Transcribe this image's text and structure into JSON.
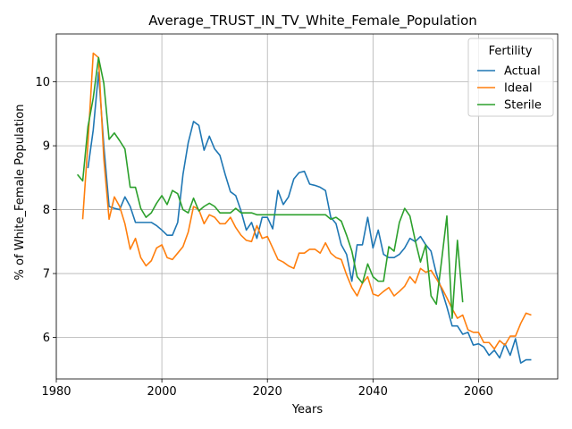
{
  "chart_data": {
    "type": "line",
    "title": "Average_TRUST_IN_TV_White_Female_Population",
    "xlabel": "Years",
    "ylabel": "% of White_Female Population",
    "xlim": [
      1980,
      2075
    ],
    "ylim": [
      5.35,
      10.75
    ],
    "xticks": [
      1980,
      2000,
      2020,
      2040,
      2060
    ],
    "yticks": [
      6,
      7,
      8,
      9,
      10
    ],
    "grid": true,
    "legend": {
      "title": "Fertility",
      "position": "top-right"
    },
    "series": [
      {
        "name": "Actual",
        "color": "#1f77b4",
        "x": [
          1986,
          1987,
          1988,
          1989,
          1990,
          1991,
          1992,
          1993,
          1994,
          1995,
          1996,
          1997,
          1998,
          1999,
          2000,
          2001,
          2002,
          2003,
          2004,
          2005,
          2006,
          2007,
          2008,
          2009,
          2010,
          2011,
          2012,
          2013,
          2014,
          2015,
          2016,
          2017,
          2018,
          2019,
          2020,
          2021,
          2022,
          2023,
          2024,
          2025,
          2026,
          2027,
          2028,
          2029,
          2030,
          2031,
          2032,
          2033,
          2034,
          2035,
          2036,
          2037,
          2038,
          2039,
          2040,
          2041,
          2042,
          2043,
          2044,
          2045,
          2046,
          2047,
          2048,
          2049,
          2050,
          2051,
          2052,
          2053,
          2054,
          2055,
          2056,
          2057,
          2058,
          2059,
          2060,
          2061,
          2062,
          2063,
          2064,
          2065,
          2066,
          2067,
          2068,
          2069,
          2070
        ],
        "y": [
          8.65,
          9.25,
          10.15,
          9.0,
          8.05,
          8.02,
          8.0,
          8.2,
          8.05,
          7.8,
          7.8,
          7.8,
          7.8,
          7.75,
          7.68,
          7.6,
          7.6,
          7.8,
          8.55,
          9.05,
          9.38,
          9.32,
          8.93,
          9.15,
          8.95,
          8.85,
          8.55,
          8.28,
          8.22,
          7.98,
          7.68,
          7.8,
          7.55,
          7.88,
          7.88,
          7.7,
          8.3,
          8.08,
          8.2,
          8.48,
          8.58,
          8.6,
          8.4,
          8.38,
          8.35,
          8.3,
          7.88,
          7.78,
          7.45,
          7.3,
          6.88,
          7.45,
          7.45,
          7.88,
          7.4,
          7.68,
          7.3,
          7.25,
          7.25,
          7.3,
          7.4,
          7.55,
          7.5,
          7.58,
          7.45,
          7.35,
          7.0,
          6.75,
          6.48,
          6.18,
          6.18,
          6.05,
          6.08,
          5.88,
          5.9,
          5.85,
          5.72,
          5.8,
          5.68,
          5.9,
          5.72,
          5.98,
          5.6,
          5.65,
          5.65
        ]
      },
      {
        "name": "Ideal",
        "color": "#ff7f0e",
        "x": [
          1985,
          1986,
          1987,
          1988,
          1989,
          1990,
          1991,
          1992,
          1993,
          1994,
          1995,
          1996,
          1997,
          1998,
          1999,
          2000,
          2001,
          2002,
          2003,
          2004,
          2005,
          2006,
          2007,
          2008,
          2009,
          2010,
          2011,
          2012,
          2013,
          2014,
          2015,
          2016,
          2017,
          2018,
          2019,
          2020,
          2021,
          2022,
          2023,
          2024,
          2025,
          2026,
          2027,
          2028,
          2029,
          2030,
          2031,
          2032,
          2033,
          2034,
          2035,
          2036,
          2037,
          2038,
          2039,
          2040,
          2041,
          2042,
          2043,
          2044,
          2045,
          2046,
          2047,
          2048,
          2049,
          2050,
          2051,
          2052,
          2053,
          2054,
          2055,
          2056,
          2057,
          2058,
          2059,
          2060,
          2061,
          2062,
          2063,
          2064,
          2065,
          2066,
          2067,
          2068,
          2069,
          2070
        ],
        "y": [
          7.85,
          9.05,
          10.45,
          10.38,
          8.8,
          7.85,
          8.2,
          8.05,
          7.78,
          7.38,
          7.55,
          7.25,
          7.12,
          7.2,
          7.4,
          7.45,
          7.25,
          7.22,
          7.32,
          7.42,
          7.65,
          8.05,
          8.0,
          7.78,
          7.92,
          7.88,
          7.78,
          7.78,
          7.88,
          7.72,
          7.6,
          7.52,
          7.5,
          7.75,
          7.55,
          7.58,
          7.4,
          7.22,
          7.18,
          7.12,
          7.08,
          7.32,
          7.32,
          7.38,
          7.38,
          7.32,
          7.48,
          7.32,
          7.25,
          7.22,
          6.98,
          6.78,
          6.65,
          6.85,
          6.95,
          6.68,
          6.65,
          6.72,
          6.78,
          6.65,
          6.72,
          6.8,
          6.95,
          6.85,
          7.08,
          7.02,
          7.05,
          6.92,
          6.78,
          6.62,
          6.45,
          6.3,
          6.35,
          6.12,
          6.08,
          6.08,
          5.92,
          5.92,
          5.82,
          5.95,
          5.88,
          6.02,
          6.02,
          6.22,
          6.38,
          6.35
        ]
      },
      {
        "name": "Sterile",
        "color": "#2ca02c",
        "x": [
          1984,
          1985,
          1986,
          1987,
          1988,
          1989,
          1990,
          1991,
          1992,
          1993,
          1994,
          1995,
          1996,
          1997,
          1998,
          1999,
          2000,
          2001,
          2002,
          2003,
          2004,
          2005,
          2006,
          2007,
          2008,
          2009,
          2010,
          2011,
          2012,
          2013,
          2014,
          2015,
          2016,
          2017,
          2018,
          2019,
          2020,
          2021,
          2022,
          2023,
          2024,
          2025,
          2026,
          2027,
          2028,
          2029,
          2030,
          2031,
          2032,
          2033,
          2034,
          2035,
          2036,
          2037,
          2038,
          2039,
          2040,
          2041,
          2042,
          2043,
          2044,
          2045,
          2046,
          2047,
          2048,
          2049,
          2050,
          2051,
          2052,
          2053,
          2054,
          2055,
          2056,
          2057
        ],
        "y": [
          8.55,
          8.45,
          9.3,
          9.75,
          10.38,
          9.98,
          9.1,
          9.2,
          9.08,
          8.95,
          8.35,
          8.35,
          8.02,
          7.88,
          7.95,
          8.1,
          8.22,
          8.08,
          8.3,
          8.25,
          8.0,
          7.95,
          8.18,
          7.98,
          8.05,
          8.1,
          8.05,
          7.95,
          7.95,
          7.95,
          8.02,
          7.95,
          7.95,
          7.95,
          7.92,
          7.92,
          7.92,
          7.92,
          7.92,
          7.92,
          7.92,
          7.92,
          7.92,
          7.92,
          7.92,
          7.92,
          7.92,
          7.92,
          7.85,
          7.88,
          7.82,
          7.6,
          7.35,
          6.95,
          6.85,
          7.15,
          6.95,
          6.88,
          6.88,
          7.42,
          7.35,
          7.8,
          8.02,
          7.9,
          7.52,
          7.18,
          7.45,
          6.65,
          6.52,
          7.2,
          7.9,
          6.3,
          7.52,
          6.55
        ]
      }
    ]
  }
}
